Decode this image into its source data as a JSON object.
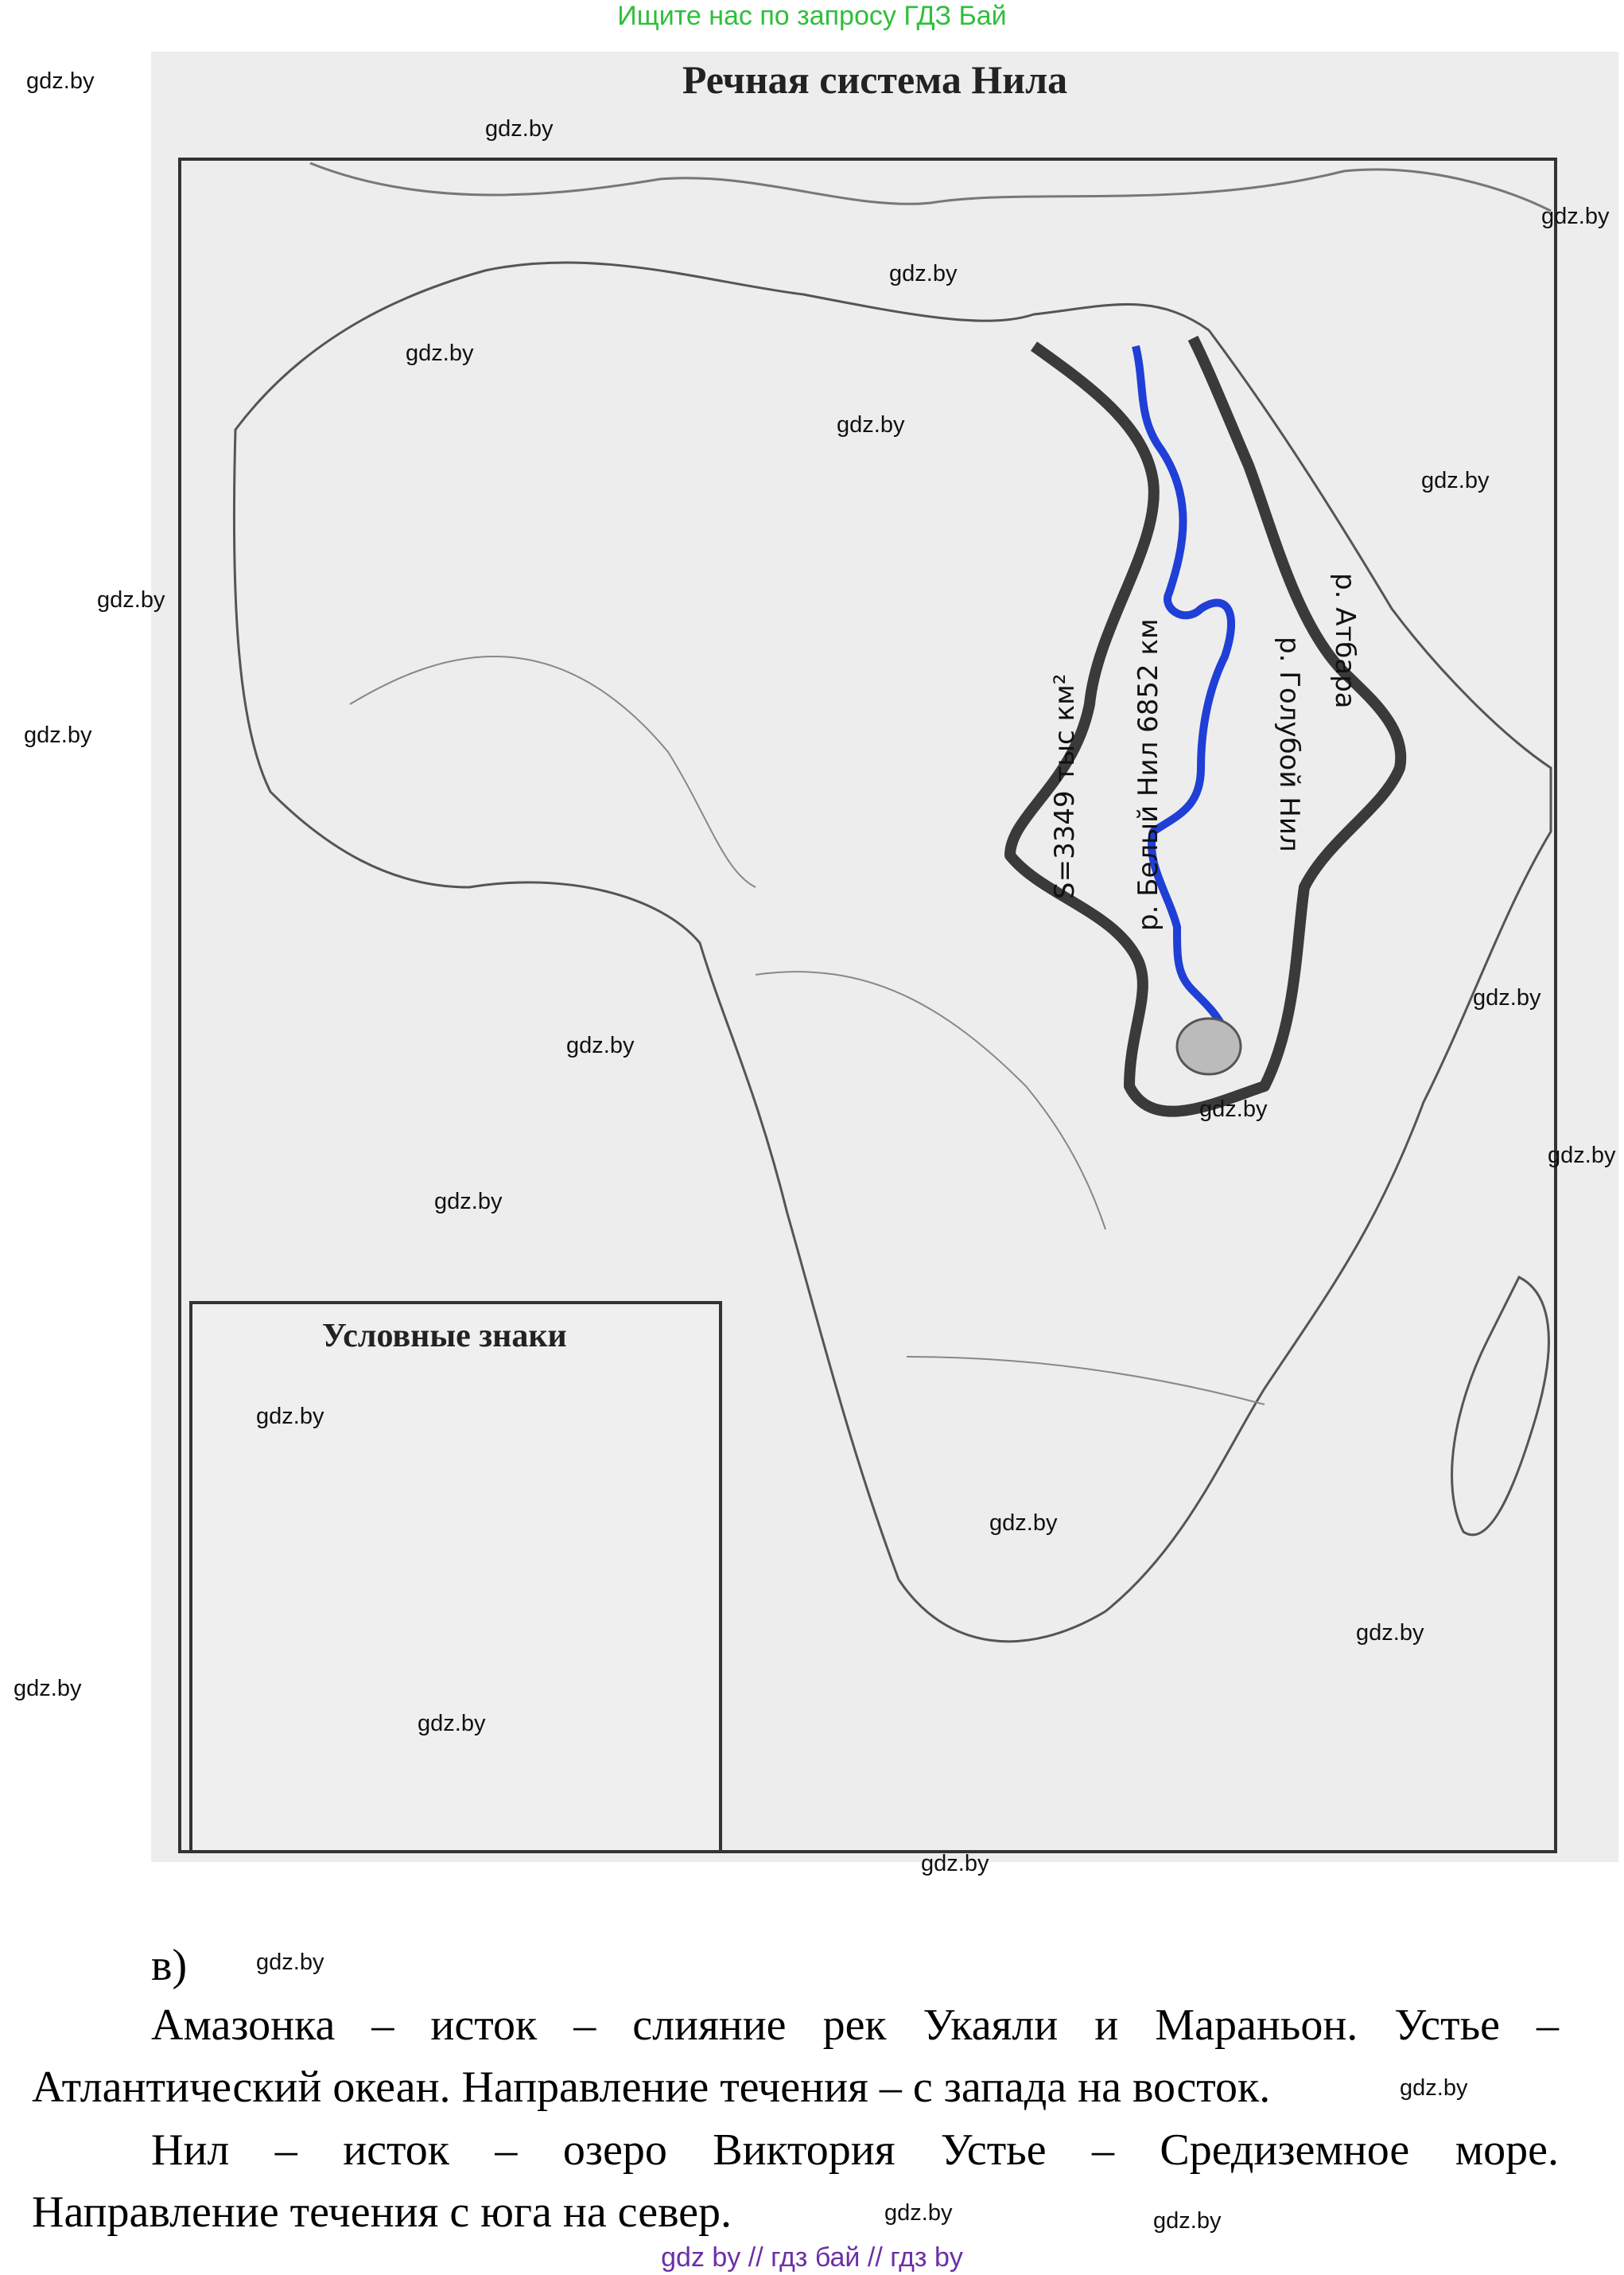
{
  "banner": "Ищите нас по запросу ГДЗ Бай",
  "map": {
    "title": "Речная система Нила",
    "legend_title": "Условные знаки",
    "annotations": {
      "area": "S=3349 тыс км²",
      "white_nile": "р. Белый Нил 6852 км",
      "blue_nile": "р. Голубой Нил",
      "atbara": "р. Атбара"
    },
    "colors": {
      "river": "#1f3fd6",
      "basin_border": "#3a3a3a"
    }
  },
  "answer": {
    "label": "в)",
    "amazon_line1": "Амазонка – исток – слияние рек Укаяли и Мараньон. Устье –",
    "amazon_line2": "Атлантический океан. Направление течения – с запада на восток.",
    "nile_line1": "Нил – исток – озеро Виктория Устье – Средиземное море.",
    "nile_line2": "Направление течения с юга на север."
  },
  "watermark": "gdz.by",
  "footer": "gdz by  //  гдз бай  //  гдз by"
}
